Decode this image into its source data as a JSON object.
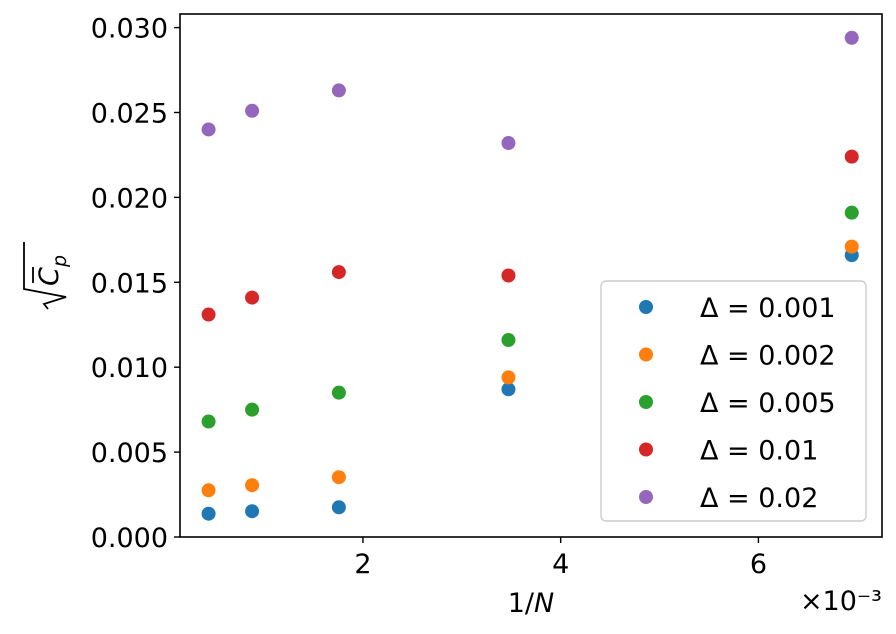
{
  "chart_data": {
    "type": "scatter",
    "title": "",
    "xlabel": "1/N",
    "ylabel": "sqrt(C̄_p)",
    "x_offset_text": "×10⁻³",
    "xlim": [
      0.00015,
      0.00725
    ],
    "ylim": [
      0.0,
      0.0308
    ],
    "x_ticks": [
      0.002,
      0.004,
      0.006
    ],
    "x_tick_labels": [
      "2",
      "4",
      "6"
    ],
    "y_ticks": [
      0.0,
      0.005,
      0.01,
      0.015,
      0.02,
      0.025,
      0.03
    ],
    "y_tick_labels": [
      "0.000",
      "0.005",
      "0.010",
      "0.015",
      "0.020",
      "0.025",
      "0.030"
    ],
    "grid": false,
    "legend_position": "lower right",
    "x": [
      0.000439,
      0.000879,
      0.001757,
      0.003472,
      0.006944
    ],
    "series": [
      {
        "name": "Δ = 0.001",
        "color": "#1f77b4",
        "values": [
          0.00137,
          0.00152,
          0.00175,
          0.0087,
          0.0166
        ]
      },
      {
        "name": "Δ = 0.002",
        "color": "#ff7f0e",
        "values": [
          0.00275,
          0.00305,
          0.00352,
          0.0094,
          0.0171
        ]
      },
      {
        "name": "Δ = 0.005",
        "color": "#2ca02c",
        "values": [
          0.0068,
          0.0075,
          0.0085,
          0.0116,
          0.0191
        ]
      },
      {
        "name": "Δ = 0.01",
        "color": "#d62728",
        "values": [
          0.0131,
          0.0141,
          0.0156,
          0.0154,
          0.0224
        ]
      },
      {
        "name": "Δ = 0.02",
        "color": "#9467bd",
        "values": [
          0.024,
          0.0251,
          0.0263,
          0.0232,
          0.0294
        ]
      }
    ]
  }
}
